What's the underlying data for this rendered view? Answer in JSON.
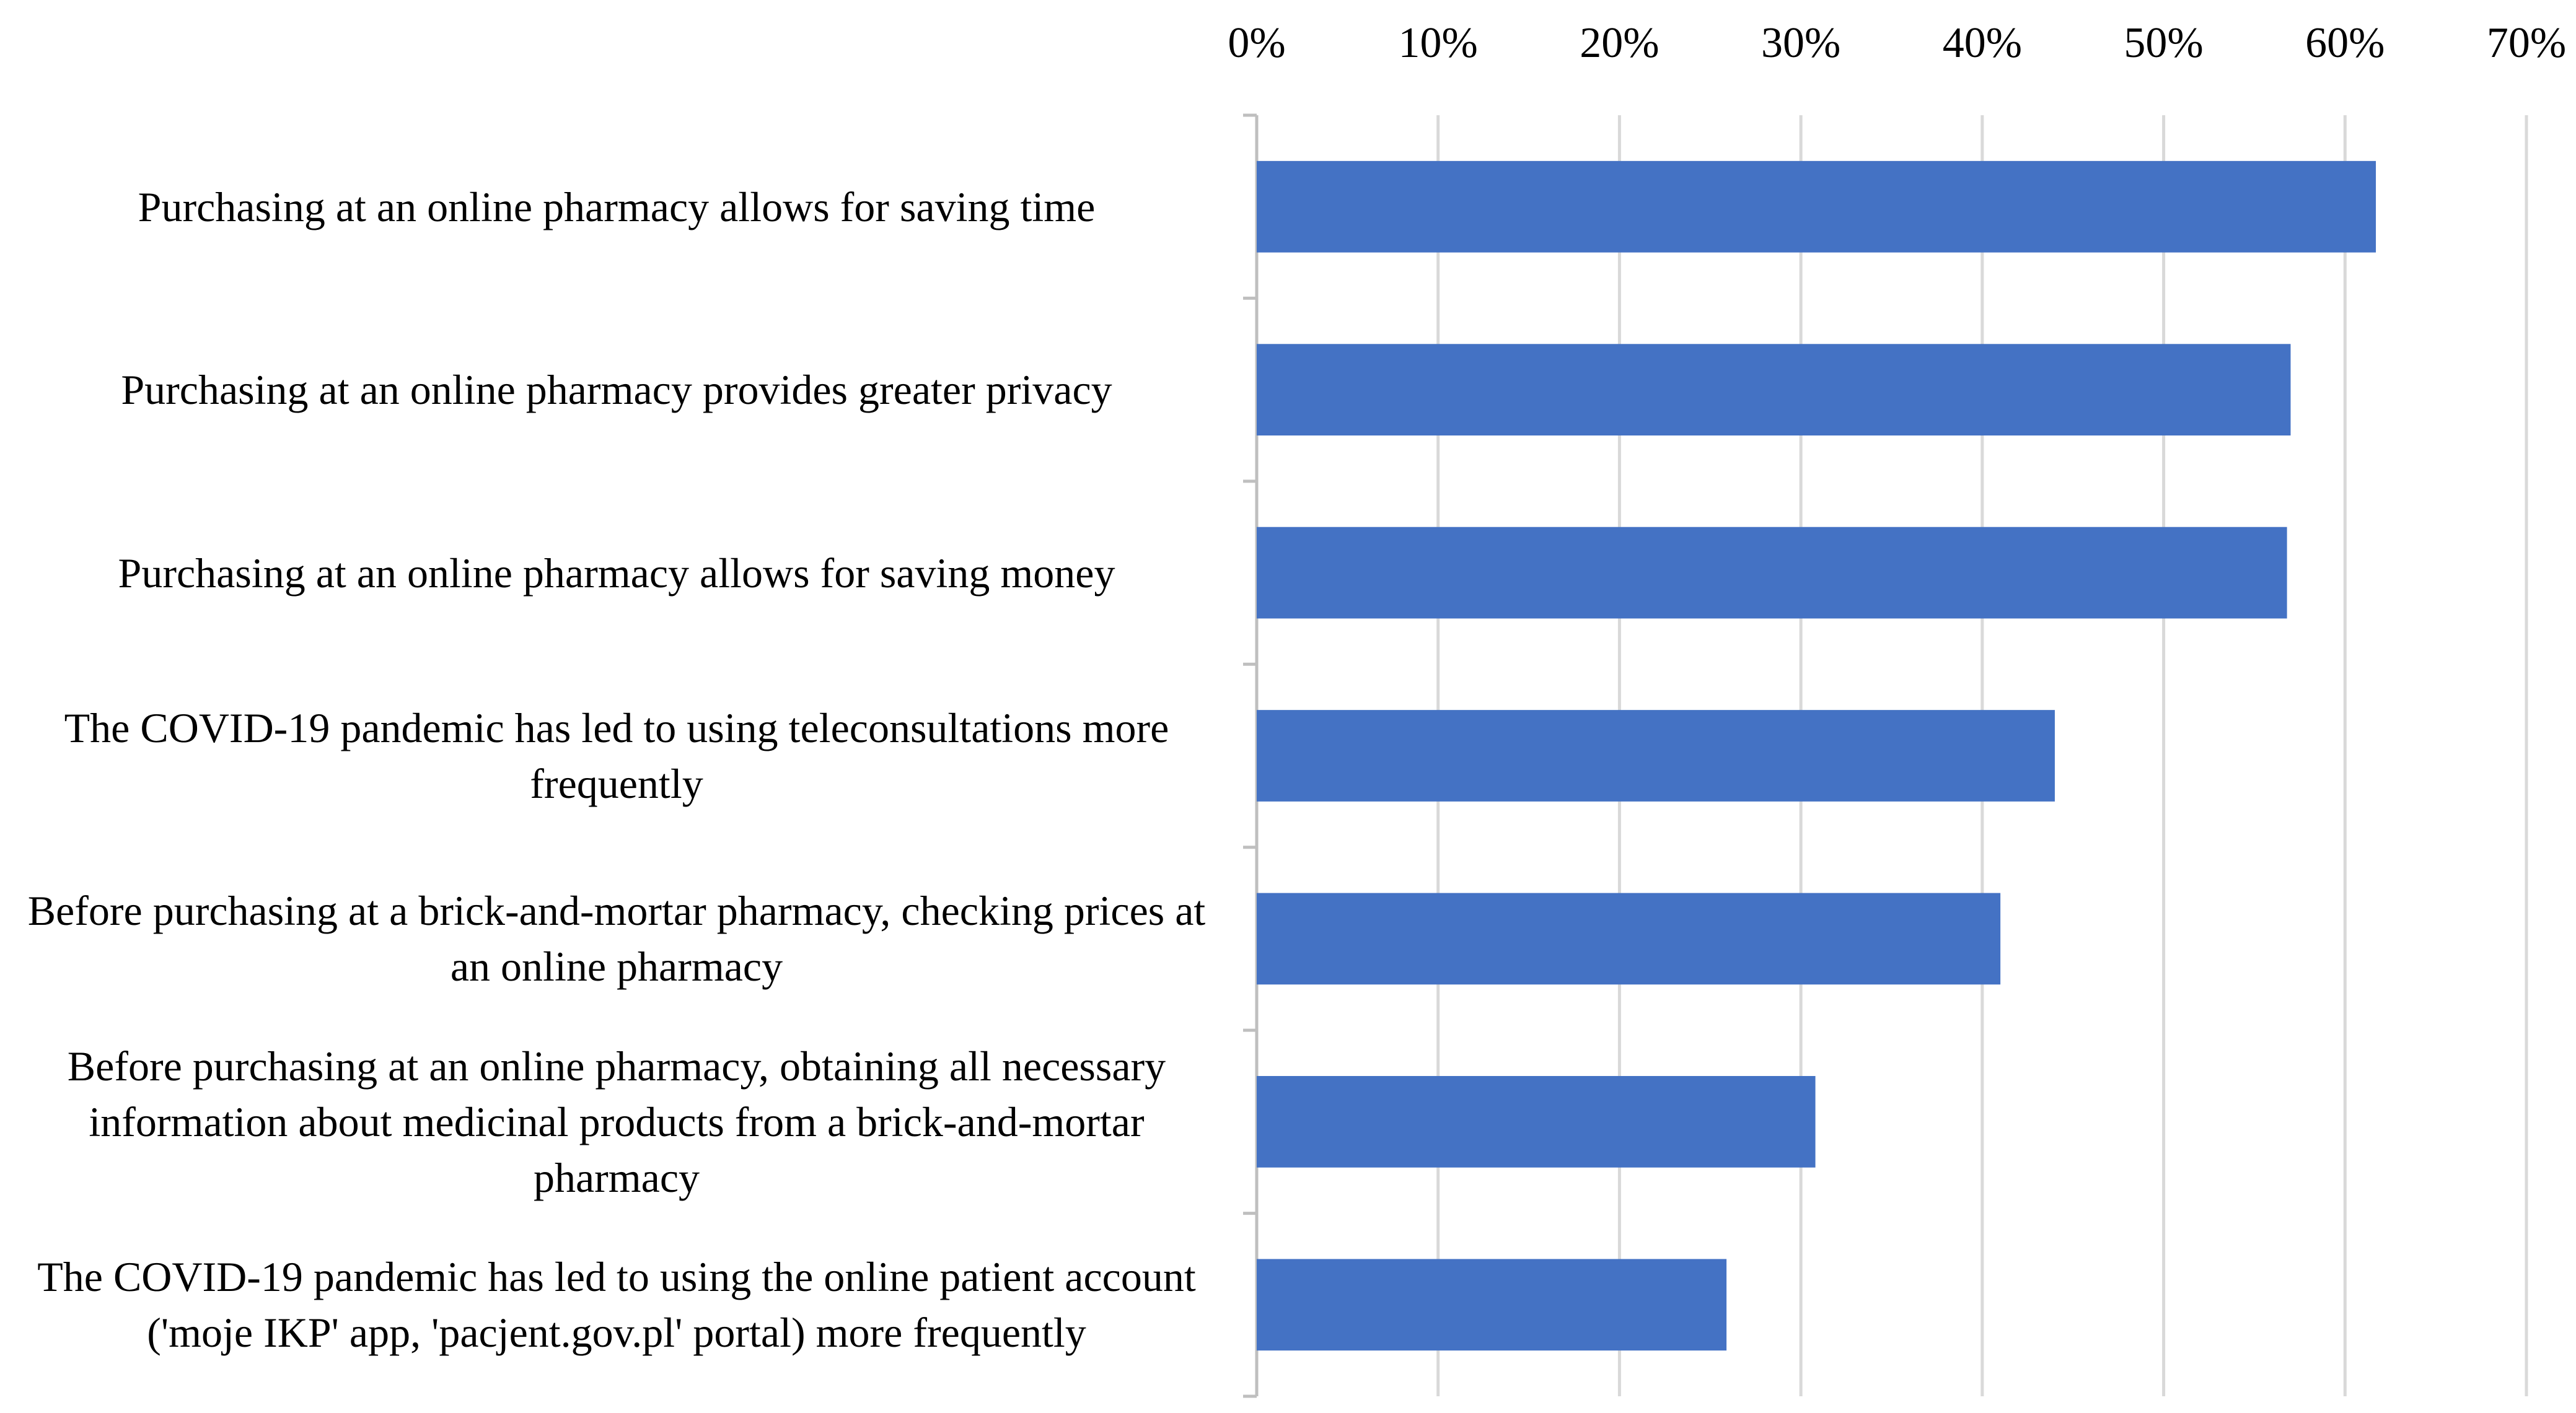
{
  "chart_data": {
    "type": "hbar",
    "categories": [
      "Purchasing at an online pharmacy allows for saving time",
      "Purchasing at an online pharmacy provides greater privacy",
      "Purchasing at an online pharmacy allows for saving money",
      "The COVID-19 pandemic has led to using teleconsultations more frequently",
      "Before purchasing at a brick-and-mortar pharmacy, checking prices at an online pharmacy",
      "Before purchasing at an online pharmacy, obtaining all necessary information about medicinal products from a brick-and-mortar pharmacy",
      "The COVID-19 pandemic has led to using the online patient account ('moje IKP' app, 'pacjent.gov.pl' portal) more frequently"
    ],
    "values": [
      61.7,
      57.0,
      56.8,
      44.0,
      41.0,
      30.8,
      25.9
    ],
    "color": "#4472c4",
    "xlim": [
      0,
      70
    ],
    "xticks": [
      {
        "value": 0,
        "label": "0%"
      },
      {
        "value": 10,
        "label": "10%"
      },
      {
        "value": 20,
        "label": "20%"
      },
      {
        "value": 30,
        "label": "30%"
      },
      {
        "value": 40,
        "label": "40%"
      },
      {
        "value": 50,
        "label": "50%"
      },
      {
        "value": 60,
        "label": "60%"
      },
      {
        "value": 70,
        "label": "70%"
      }
    ],
    "grid": true
  }
}
